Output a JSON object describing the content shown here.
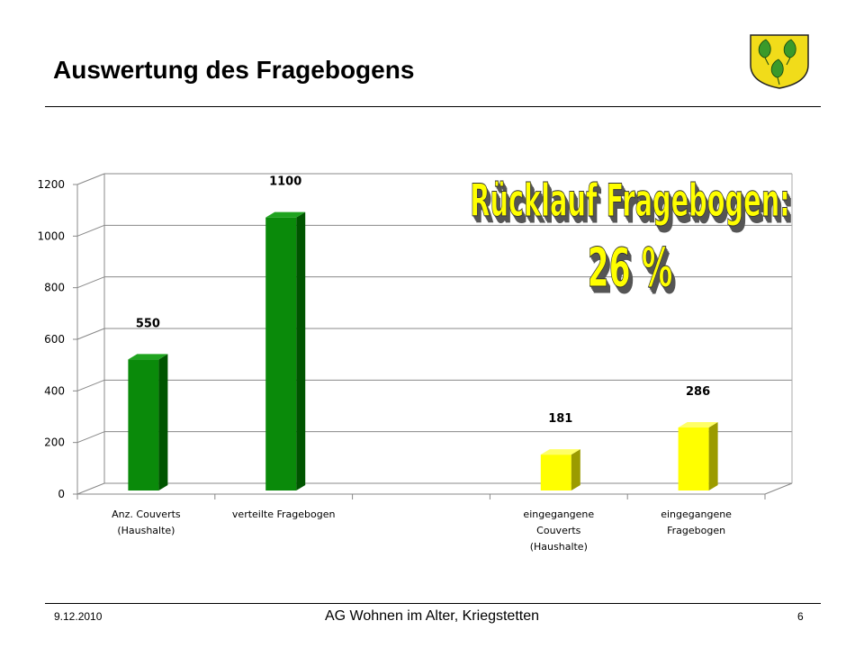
{
  "slide": {
    "title": "Auswertung des Fragebogens",
    "footer_date": "9.12.2010",
    "footer_center": "AG Wohnen im Alter, Kriegstetten",
    "page_number": "6"
  },
  "colors": {
    "green_front": "#0a8a0a",
    "green_side": "#005500",
    "green_top": "#1fa31f",
    "yellow_front": "#ffff00",
    "yellow_side": "#9b9b00",
    "yellow_top": "#ffff66",
    "overlay_text": "#ffff00",
    "overlay_shadow": "#555555"
  },
  "chart_data": {
    "type": "bar",
    "categories": [
      [
        "Anz. Couverts",
        "(Haushalte)"
      ],
      [
        "verteilte Fragebogen"
      ],
      [
        ""
      ],
      [
        "eingegangene",
        "Couverts",
        "(Haushalte)"
      ],
      [
        "eingegangene",
        "Fragebogen"
      ]
    ],
    "values": [
      550,
      1100,
      null,
      181,
      286
    ],
    "data_labels": [
      "550",
      "1100",
      "",
      "181",
      "286"
    ],
    "bar_colors": [
      "green",
      "green",
      "",
      "yellow",
      "yellow"
    ],
    "ylim": [
      0,
      1200
    ],
    "yticks": [
      0,
      200,
      400,
      600,
      800,
      1000,
      1200
    ],
    "grid": true,
    "three_d": true,
    "overlay": [
      "Rücklauf Fragebogen:",
      "26 %"
    ]
  }
}
